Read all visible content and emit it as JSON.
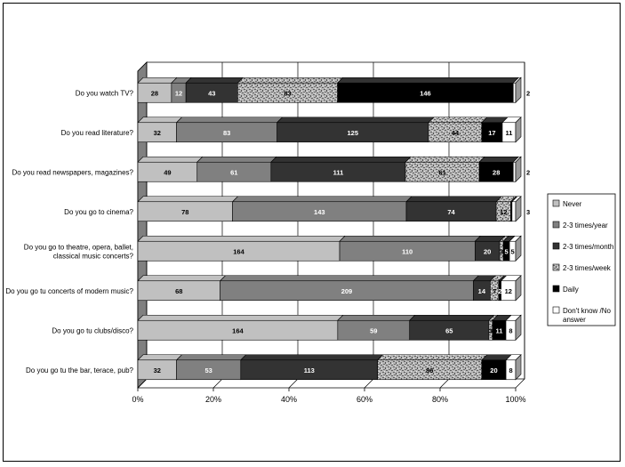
{
  "chart_data": {
    "type": "bar",
    "orientation": "horizontal",
    "stacked": "percent",
    "categories": [
      "Do you watch TV?",
      "Do you read literature?",
      "Do you read newspapers, magazines?",
      "Do you go to cinema?",
      "Do you go to theatre, opera, ballet, classical music concerts?",
      "Do you go tu concerts of modern music?",
      "Do you go tu clubs/disco?",
      "Do you go tu the bar, terace, pub?"
    ],
    "category_lines": [
      [
        "Do you watch TV?"
      ],
      [
        "Do you read literature?"
      ],
      [
        "Do you read newspapers, magazines?"
      ],
      [
        "Do you go to cinema?"
      ],
      [
        "Do you go to theatre, opera, ballet,",
        "classical music concerts?"
      ],
      [
        "Do you go tu concerts of modern music?"
      ],
      [
        "Do you go tu clubs/disco?"
      ],
      [
        "Do you go tu the bar, terace, pub?"
      ]
    ],
    "series": [
      {
        "name": "Never",
        "color": "#c0c0c0",
        "label_color": "#000000",
        "values": [
          28,
          32,
          49,
          78,
          164,
          68,
          164,
          32
        ]
      },
      {
        "name": "2-3 times/year",
        "color": "#808080",
        "label_color": "#ffffff",
        "values": [
          12,
          83,
          61,
          143,
          110,
          209,
          59,
          53
        ]
      },
      {
        "name": "2-3 times/month",
        "color": "#333333",
        "label_color": "#ffffff",
        "values": [
          43,
          125,
          111,
          74,
          20,
          14,
          65,
          113
        ]
      },
      {
        "name": "2-3 times/week",
        "color": "#aaaaaa",
        "label_color": "#000000",
        "pattern": true,
        "values": [
          83,
          44,
          61,
          12,
          3,
          7,
          3,
          86
        ]
      },
      {
        "name": "Daily",
        "color": "#000000",
        "label_color": "#ffffff",
        "values": [
          146,
          17,
          28,
          1,
          5,
          2,
          11,
          20
        ]
      },
      {
        "name": "Don't know /No answer",
        "legend_lines": [
          "Don't know /No",
          "answer"
        ],
        "color": "#ffffff",
        "label_color": "#000000",
        "values": [
          2,
          11,
          2,
          3,
          5,
          12,
          8,
          8
        ]
      }
    ],
    "data_labels": [
      [
        "28",
        "12",
        "43",
        "83",
        "146",
        "2"
      ],
      [
        "32",
        "83",
        "125",
        "44",
        "17",
        "11"
      ],
      [
        "49",
        "61",
        "111",
        "61",
        "28",
        "2"
      ],
      [
        "78",
        "143",
        "74",
        "12",
        "",
        "3"
      ],
      [
        "164",
        "110",
        "20",
        "3",
        "5",
        "5"
      ],
      [
        "68",
        "209",
        "14",
        "7",
        "2",
        "12"
      ],
      [
        "164",
        "59",
        "65",
        "3",
        "11",
        "8"
      ],
      [
        "32",
        "53",
        "113",
        "86",
        "20",
        "8"
      ]
    ],
    "x_ticks": [
      "0%",
      "20%",
      "40%",
      "60%",
      "80%",
      "100%"
    ],
    "xlim": [
      0,
      100
    ],
    "grid": true,
    "legend_position": "right",
    "title": "",
    "xlabel": "",
    "ylabel": ""
  }
}
